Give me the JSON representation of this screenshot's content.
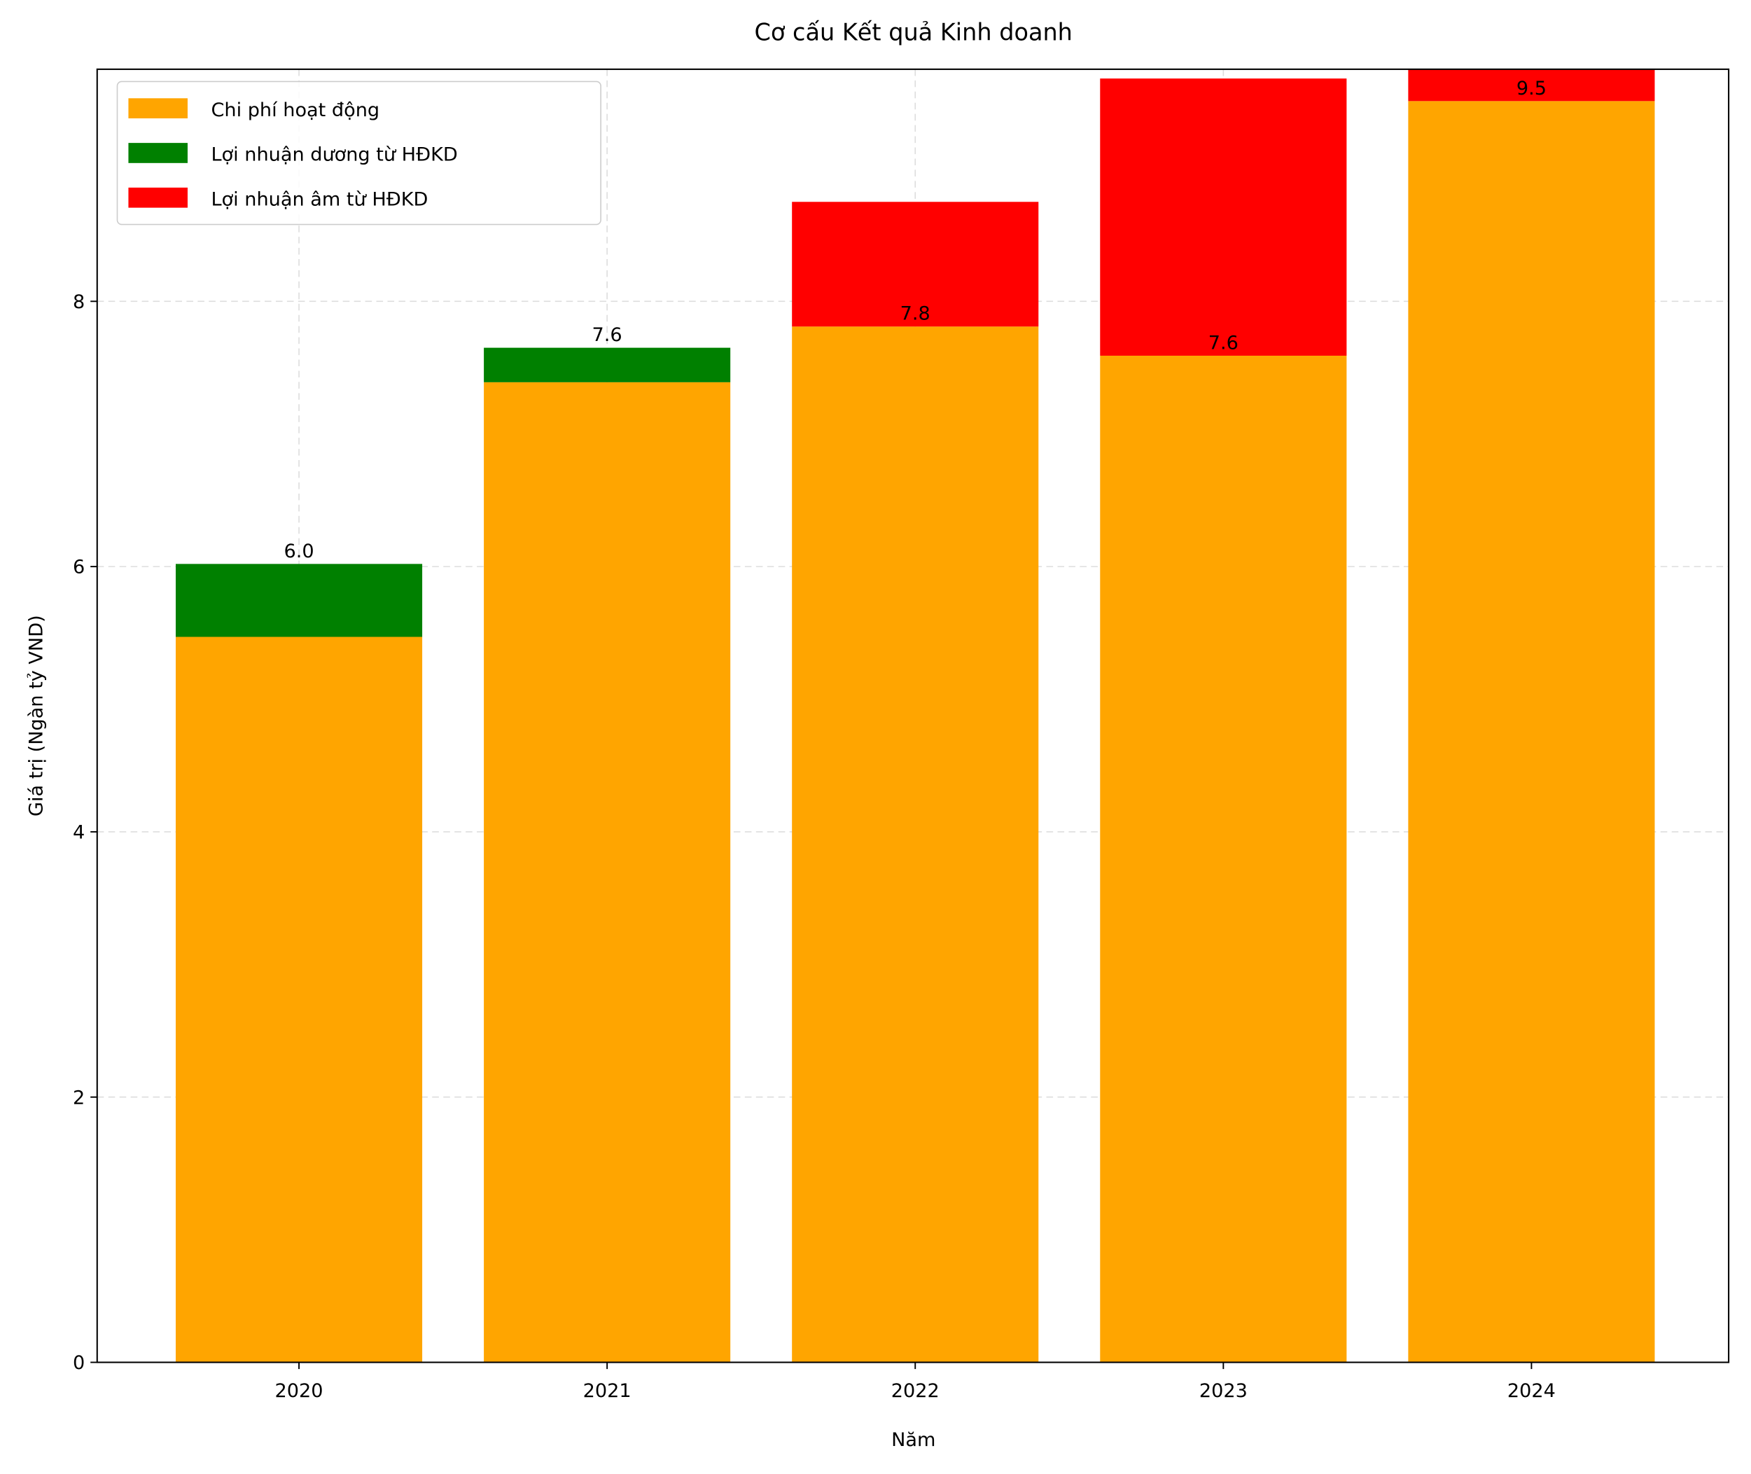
{
  "chart_data": {
    "type": "bar",
    "stacked": true,
    "title": "Cơ cấu Kết quả Kinh doanh",
    "x_label": "Năm",
    "y_label": "Giá trị (Ngàn tỷ VND)",
    "categories": [
      "2020",
      "2021",
      "2022",
      "2023",
      "2024"
    ],
    "series": [
      {
        "name": "Chi phí hoạt động",
        "color": "#ffa500",
        "values": [
          5.47,
          7.39,
          7.81,
          7.59,
          9.51
        ]
      },
      {
        "name": "Lợi nhuận dương từ HĐKD",
        "color": "#008000",
        "values": [
          0.55,
          0.26,
          0,
          0,
          0
        ]
      },
      {
        "name": "Lợi nhuận âm từ HĐKD",
        "color": "#ff0000",
        "values": [
          0,
          0,
          0.94,
          2.09,
          0.3
        ]
      }
    ],
    "labels": {
      "values": [
        6.02,
        7.65,
        7.81,
        7.59,
        9.51
      ],
      "value_labels": [
        "6.0",
        "7.6",
        "7.8",
        "7.6",
        "9.5"
      ]
    },
    "ylim": [
      0,
      9.75
    ],
    "yticks": [
      0,
      2,
      4,
      6,
      8
    ],
    "grid": true,
    "legend": "upper-left"
  }
}
